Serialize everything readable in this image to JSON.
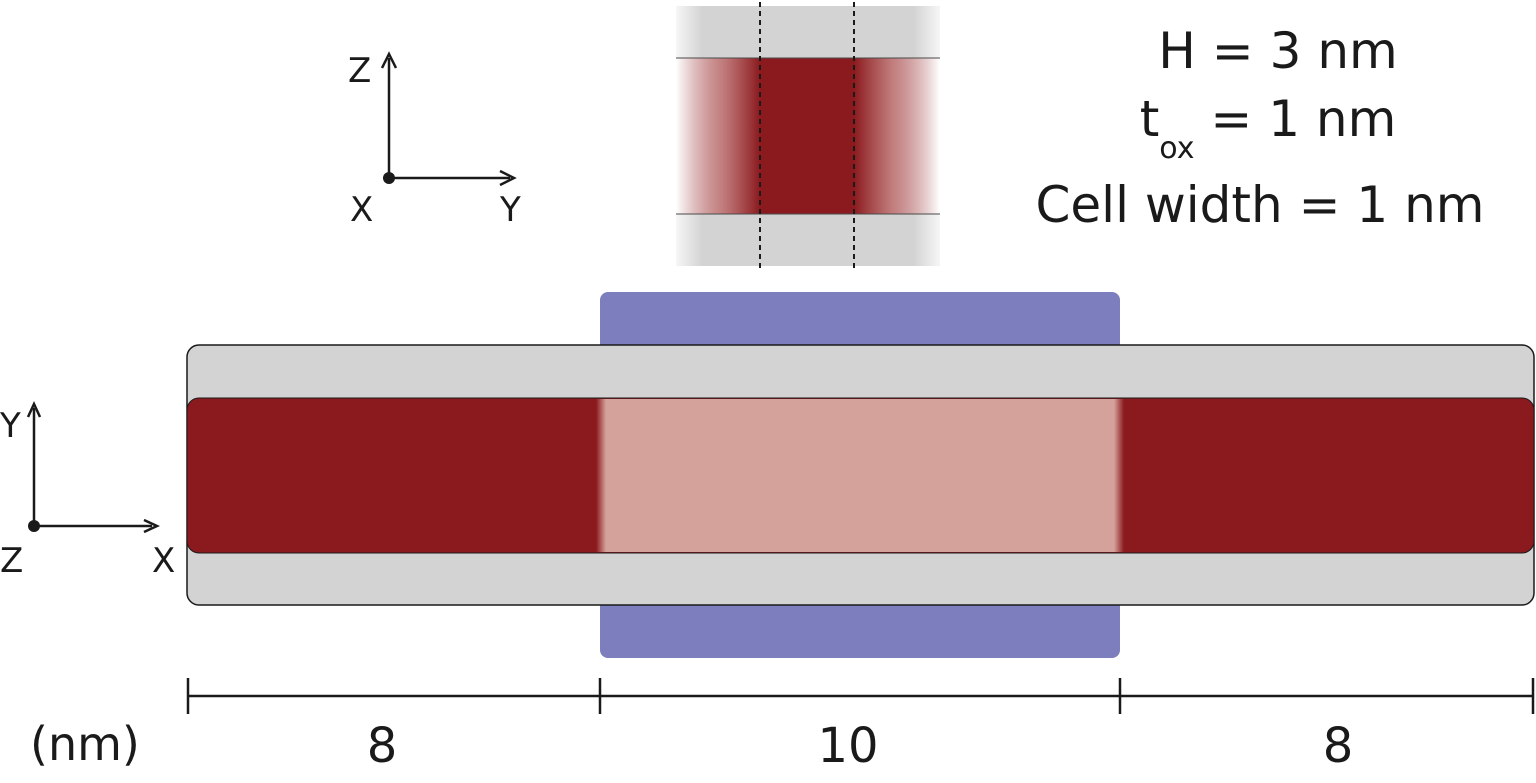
{
  "parameters": {
    "height": {
      "label": "H",
      "equals": "=",
      "value": "3 nm"
    },
    "oxide_thickness": {
      "label": "t",
      "subscript": "ox",
      "equals": "=",
      "value": "1 nm"
    },
    "cell_width": {
      "label": "Cell  width",
      "equals": "=",
      "value": "1 nm"
    }
  },
  "cross_section_axes": {
    "vertical": "Z",
    "horizontal": "Y",
    "origin": "X"
  },
  "top_view_axes": {
    "vertical": "Y",
    "horizontal": "X",
    "origin": "Z"
  },
  "dimensions": {
    "unit": "(nm)",
    "segments": [
      "8",
      "10",
      "8"
    ]
  },
  "colors": {
    "channel_doped": "#8b1a1e",
    "channel_gated": "#d4a29b",
    "oxide": "#d3d3d3",
    "gate": "#7d7ebd",
    "outline": "#1a1a1a"
  }
}
